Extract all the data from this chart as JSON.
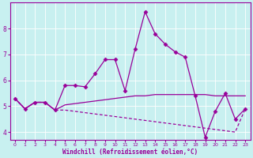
{
  "xlabel": "Windchill (Refroidissement éolien,°C)",
  "bg_color": "#c8f0f0",
  "line_color": "#990099",
  "grid_color": "#b0d8d8",
  "ylim": [
    3.7,
    9.0
  ],
  "xlim": [
    -0.5,
    23.5
  ],
  "yticks": [
    4,
    5,
    6,
    7,
    8
  ],
  "xticks": [
    0,
    1,
    2,
    3,
    4,
    5,
    6,
    7,
    8,
    9,
    10,
    11,
    12,
    13,
    14,
    15,
    16,
    17,
    18,
    19,
    20,
    21,
    22,
    23
  ],
  "series1_x": [
    0,
    1,
    2,
    3,
    4,
    5,
    6,
    7,
    8,
    9,
    10,
    11,
    12,
    13,
    14,
    15,
    16,
    17,
    18,
    19,
    20,
    21,
    22,
    23
  ],
  "series1_y": [
    5.3,
    4.9,
    5.15,
    5.15,
    4.85,
    5.8,
    5.8,
    5.75,
    6.25,
    6.8,
    6.8,
    5.6,
    7.2,
    8.65,
    7.8,
    7.4,
    7.1,
    6.9,
    5.4,
    3.8,
    4.8,
    5.5,
    4.5,
    4.9
  ],
  "series2_x": [
    0,
    1,
    2,
    3,
    4,
    5,
    6,
    7,
    8,
    9,
    10,
    11,
    12,
    13,
    14,
    15,
    16,
    17,
    18,
    19,
    20,
    21,
    22,
    23
  ],
  "series2_y": [
    5.3,
    4.9,
    5.15,
    5.15,
    4.85,
    5.05,
    5.1,
    5.15,
    5.2,
    5.25,
    5.3,
    5.35,
    5.4,
    5.4,
    5.45,
    5.45,
    5.45,
    5.45,
    5.45,
    5.45,
    5.4,
    5.4,
    5.4,
    5.4
  ],
  "series3_x": [
    0,
    1,
    2,
    3,
    4,
    5,
    6,
    7,
    8,
    9,
    10,
    11,
    12,
    13,
    14,
    15,
    16,
    17,
    18,
    19,
    20,
    21,
    22,
    23
  ],
  "series3_y": [
    5.3,
    4.9,
    5.15,
    5.15,
    4.85,
    4.85,
    4.8,
    4.75,
    4.7,
    4.65,
    4.6,
    4.55,
    4.5,
    4.45,
    4.4,
    4.35,
    4.3,
    4.25,
    4.2,
    4.15,
    4.1,
    4.05,
    4.0,
    4.9
  ]
}
